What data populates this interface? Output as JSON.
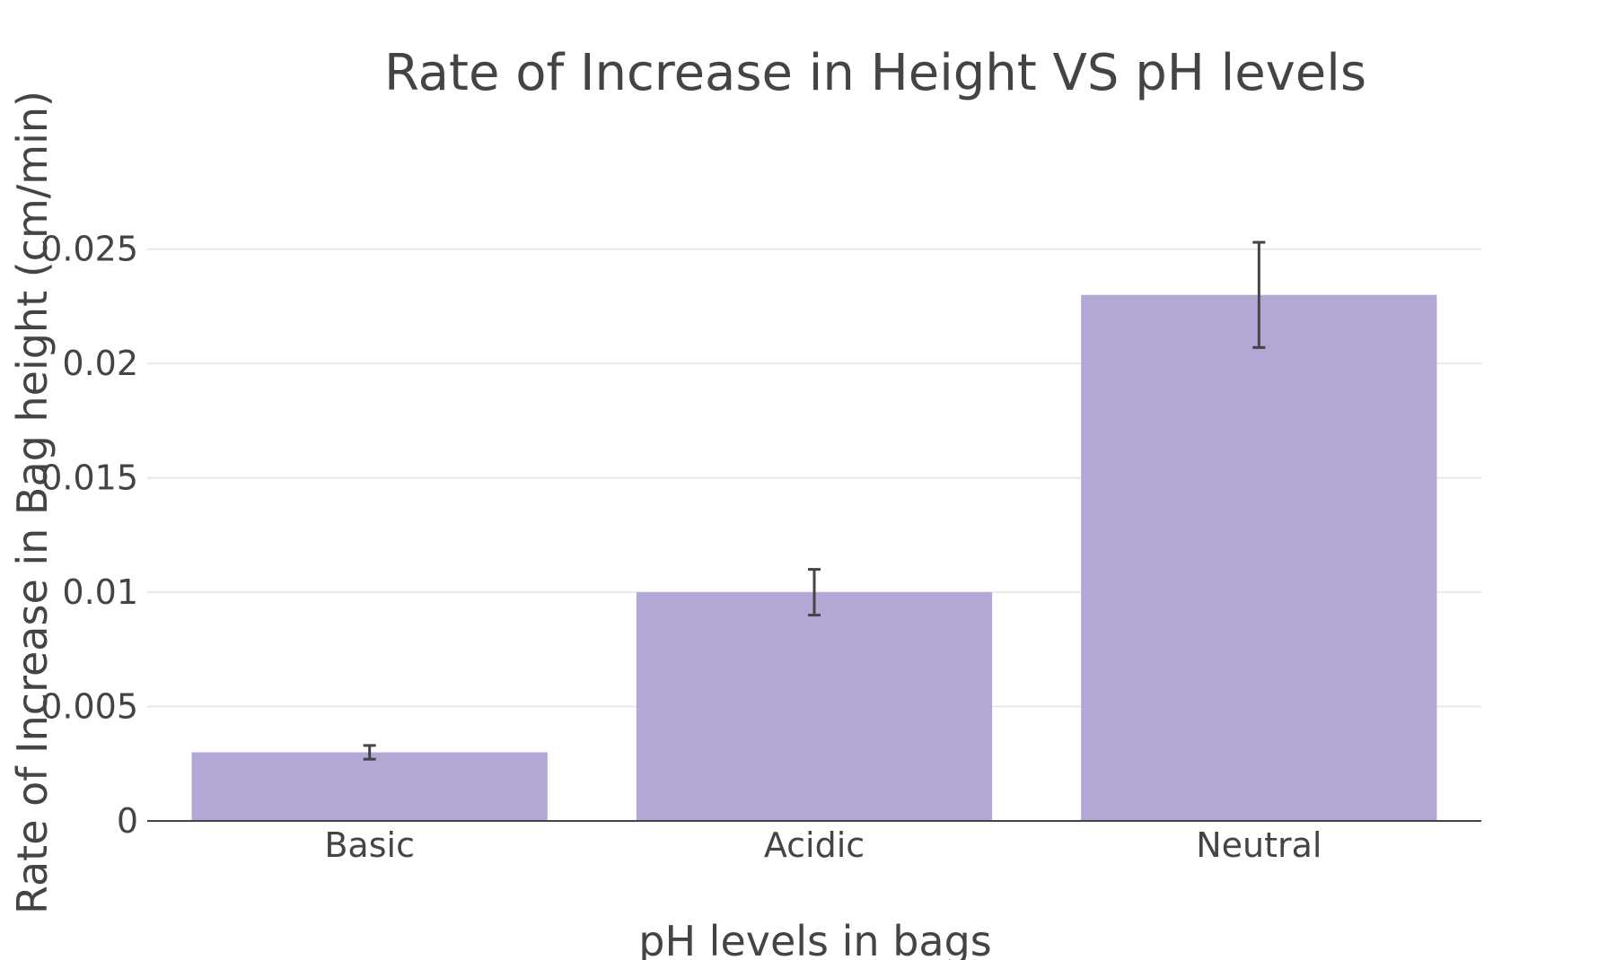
{
  "chart_data": {
    "type": "bar",
    "title": "Rate of Increase in Height VS pH levels",
    "xlabel": "pH levels in bags",
    "ylabel": "Rate of Increase in Bag height (cm/min)",
    "categories": [
      "Basic",
      "Acidic",
      "Neutral"
    ],
    "values": [
      0.003,
      0.01,
      0.023
    ],
    "error": [
      0.0003,
      0.001,
      0.0023
    ],
    "ylim": [
      0,
      0.0275
    ],
    "yticks": [
      0,
      0.005,
      0.01,
      0.015,
      0.02,
      0.025
    ],
    "ytick_labels": [
      "0",
      "0.005",
      "0.01",
      "0.015",
      "0.02",
      "0.025"
    ],
    "grid": true,
    "legend": "none",
    "bar_color": "#b3a7d6",
    "text_color": "#444444"
  }
}
